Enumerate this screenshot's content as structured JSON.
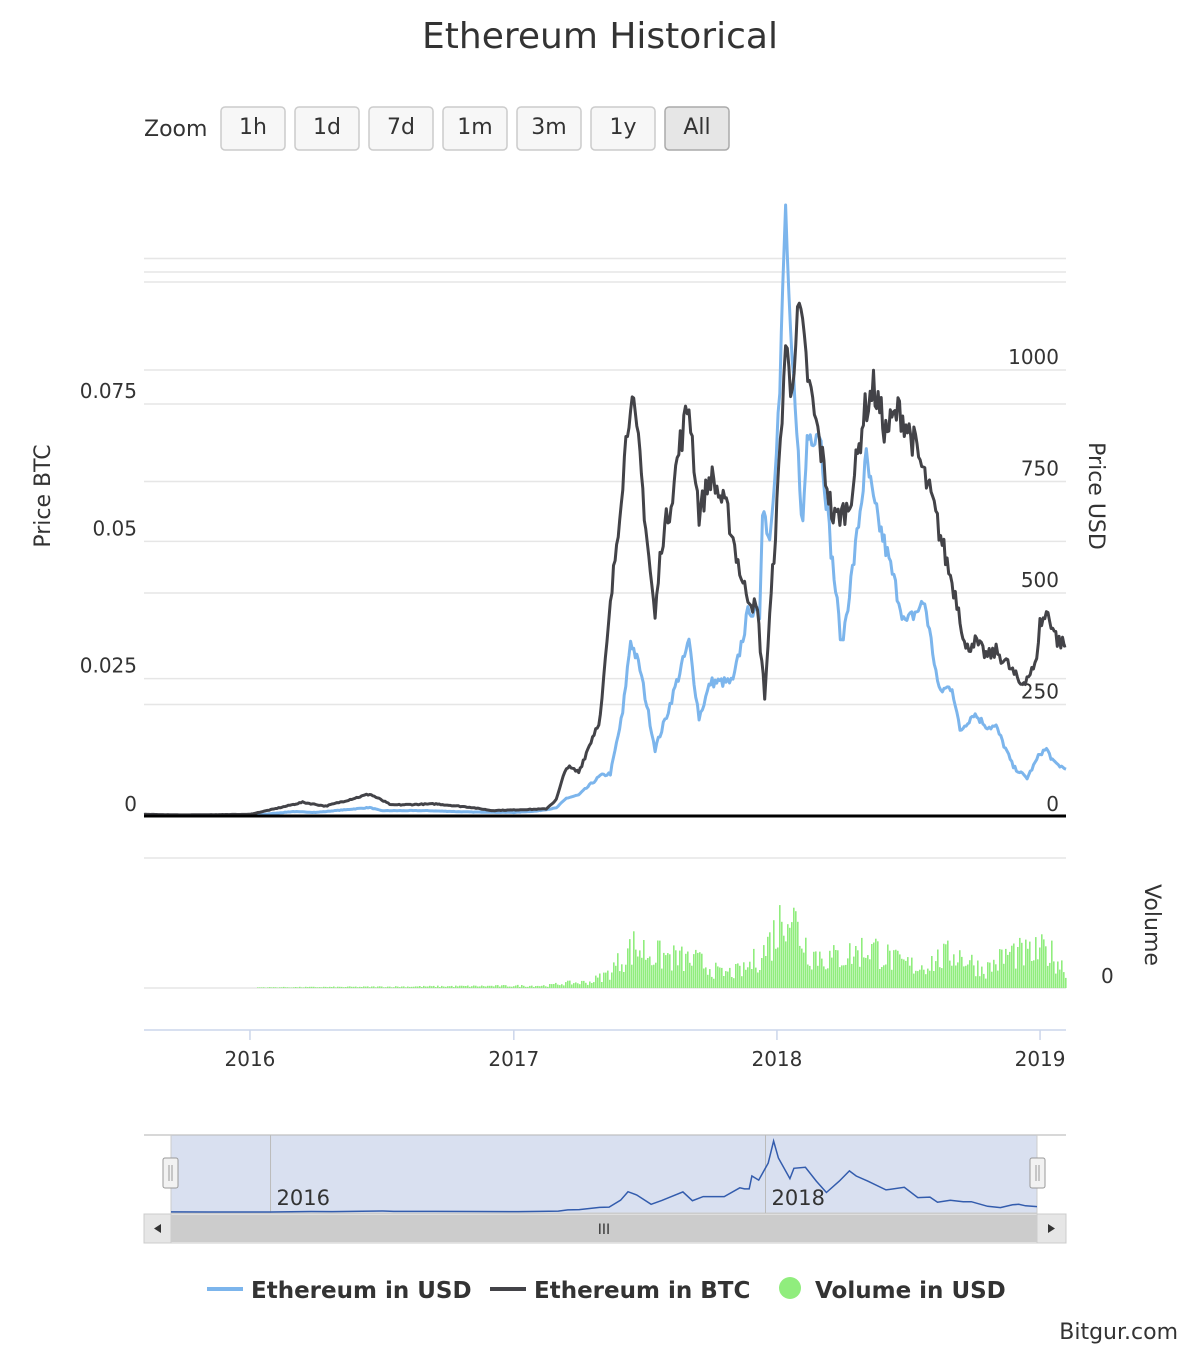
{
  "chart_data": {
    "type": "line",
    "title": "Ethereum Historical",
    "zoom": {
      "label": "Zoom",
      "buttons": [
        "1h",
        "1d",
        "7d",
        "1m",
        "3m",
        "1y",
        "All"
      ],
      "selected": "All"
    },
    "x_axis": {
      "range": [
        "2015-08-07",
        "2019-02-06"
      ],
      "ticks": [
        {
          "date": "2016-01-01",
          "label": "2016"
        },
        {
          "date": "2017-01-01",
          "label": "2017"
        },
        {
          "date": "2018-01-01",
          "label": "2018"
        },
        {
          "date": "2019-01-01",
          "label": "2019"
        }
      ]
    },
    "y_axis_left": {
      "title": "Price BTC",
      "range": [
        0,
        0.0925
      ],
      "ticks": [
        0,
        0.025,
        0.05,
        0.075
      ],
      "tick_labels": [
        "0",
        "0.025",
        "0.05",
        "0.075"
      ]
    },
    "y_axis_right": {
      "title": "Price USD",
      "range": [
        0,
        1250
      ],
      "ticks": [
        0,
        250,
        500,
        750,
        1000
      ],
      "tick_labels": [
        "0",
        "250",
        "500",
        "750",
        "1000"
      ]
    },
    "volume_axis": {
      "title": "Volume",
      "ticks": [
        0
      ],
      "tick_labels": [
        "0"
      ]
    },
    "grid": true,
    "legend_position": "bottom",
    "series": [
      {
        "name": "Ethereum in USD",
        "axis": "right",
        "color": "#7cb5ec",
        "points": [
          [
            "2015-08-07",
            2.8
          ],
          [
            "2015-10-01",
            0.7
          ],
          [
            "2016-01-01",
            0.9
          ],
          [
            "2016-03-01",
            10
          ],
          [
            "2016-04-01",
            8
          ],
          [
            "2016-06-15",
            19
          ],
          [
            "2016-07-01",
            12
          ],
          [
            "2016-09-01",
            12
          ],
          [
            "2016-11-01",
            9
          ],
          [
            "2017-01-01",
            8
          ],
          [
            "2017-02-01",
            11
          ],
          [
            "2017-03-01",
            18
          ],
          [
            "2017-03-15",
            40
          ],
          [
            "2017-04-01",
            47
          ],
          [
            "2017-05-01",
            90
          ],
          [
            "2017-05-15",
            95
          ],
          [
            "2017-06-01",
            230
          ],
          [
            "2017-06-12",
            395
          ],
          [
            "2017-06-25",
            330
          ],
          [
            "2017-07-16",
            150
          ],
          [
            "2017-08-01",
            225
          ],
          [
            "2017-08-15",
            300
          ],
          [
            "2017-09-01",
            390
          ],
          [
            "2017-09-15",
            220
          ],
          [
            "2017-10-01",
            300
          ],
          [
            "2017-10-20",
            300
          ],
          [
            "2017-11-01",
            300
          ],
          [
            "2017-11-24",
            470
          ],
          [
            "2017-12-01",
            450
          ],
          [
            "2017-12-08",
            450
          ],
          [
            "2017-12-12",
            700
          ],
          [
            "2017-12-22",
            620
          ],
          [
            "2018-01-05",
            950
          ],
          [
            "2018-01-13",
            1380
          ],
          [
            "2018-01-20",
            1050
          ],
          [
            "2018-02-06",
            650
          ],
          [
            "2018-02-12",
            850
          ],
          [
            "2018-03-01",
            870
          ],
          [
            "2018-03-17",
            600
          ],
          [
            "2018-04-01",
            380
          ],
          [
            "2018-04-20",
            600
          ],
          [
            "2018-05-05",
            800
          ],
          [
            "2018-05-15",
            700
          ],
          [
            "2018-06-01",
            600
          ],
          [
            "2018-06-28",
            430
          ],
          [
            "2018-07-25",
            480
          ],
          [
            "2018-08-14",
            280
          ],
          [
            "2018-09-01",
            290
          ],
          [
            "2018-09-12",
            190
          ],
          [
            "2018-10-01",
            230
          ],
          [
            "2018-10-20",
            200
          ],
          [
            "2018-11-01",
            200
          ],
          [
            "2018-11-25",
            110
          ],
          [
            "2018-12-14",
            85
          ],
          [
            "2019-01-01",
            140
          ],
          [
            "2019-01-10",
            150
          ],
          [
            "2019-01-20",
            120
          ],
          [
            "2019-02-06",
            105
          ]
        ]
      },
      {
        "name": "Ethereum in BTC",
        "axis": "left",
        "color": "#434348",
        "points": [
          [
            "2015-08-07",
            0.0003
          ],
          [
            "2015-10-01",
            0.0002
          ],
          [
            "2016-01-01",
            0.0003
          ],
          [
            "2016-02-01",
            0.0012
          ],
          [
            "2016-03-14",
            0.0025
          ],
          [
            "2016-04-15",
            0.0018
          ],
          [
            "2016-06-15",
            0.004
          ],
          [
            "2016-07-15",
            0.002
          ],
          [
            "2016-09-15",
            0.0022
          ],
          [
            "2016-11-01",
            0.0016
          ],
          [
            "2016-12-01",
            0.001
          ],
          [
            "2017-01-01",
            0.0011
          ],
          [
            "2017-02-15",
            0.0013
          ],
          [
            "2017-03-01",
            0.003
          ],
          [
            "2017-03-15",
            0.009
          ],
          [
            "2017-04-01",
            0.008
          ],
          [
            "2017-05-01",
            0.018
          ],
          [
            "2017-05-15",
            0.038
          ],
          [
            "2017-06-12",
            0.077
          ],
          [
            "2017-06-25",
            0.065
          ],
          [
            "2017-07-05",
            0.05
          ],
          [
            "2017-07-16",
            0.036
          ],
          [
            "2017-07-25",
            0.05
          ],
          [
            "2017-08-05",
            0.056
          ],
          [
            "2017-08-20",
            0.068
          ],
          [
            "2017-09-01",
            0.075
          ],
          [
            "2017-09-15",
            0.055
          ],
          [
            "2017-10-01",
            0.062
          ],
          [
            "2017-10-25",
            0.055
          ],
          [
            "2017-11-15",
            0.042
          ],
          [
            "2017-12-05",
            0.037
          ],
          [
            "2017-12-15",
            0.022
          ],
          [
            "2017-12-22",
            0.036
          ],
          [
            "2018-01-01",
            0.056
          ],
          [
            "2018-01-13",
            0.086
          ],
          [
            "2018-01-20",
            0.078
          ],
          [
            "2018-02-01",
            0.092
          ],
          [
            "2018-02-15",
            0.078
          ],
          [
            "2018-03-01",
            0.068
          ],
          [
            "2018-03-20",
            0.054
          ],
          [
            "2018-04-10",
            0.056
          ],
          [
            "2018-04-25",
            0.067
          ],
          [
            "2018-05-01",
            0.073
          ],
          [
            "2018-05-15",
            0.078
          ],
          [
            "2018-06-01",
            0.07
          ],
          [
            "2018-06-20",
            0.074
          ],
          [
            "2018-07-10",
            0.068
          ],
          [
            "2018-08-05",
            0.057
          ],
          [
            "2018-08-25",
            0.046
          ],
          [
            "2018-09-10",
            0.038
          ],
          [
            "2018-09-20",
            0.03
          ],
          [
            "2018-10-01",
            0.032
          ],
          [
            "2018-10-20",
            0.029
          ],
          [
            "2018-11-01",
            0.03
          ],
          [
            "2018-11-15",
            0.028
          ],
          [
            "2018-12-05",
            0.024
          ],
          [
            "2018-12-25",
            0.027
          ],
          [
            "2019-01-01",
            0.035
          ],
          [
            "2019-01-12",
            0.037
          ],
          [
            "2019-01-25",
            0.032
          ],
          [
            "2019-02-06",
            0.031
          ]
        ]
      },
      {
        "name": "Volume in USD",
        "axis": "volume",
        "color": "#90ed7d",
        "type": "column",
        "relative_levels": [
          [
            "2015-08-07",
            0.0
          ],
          [
            "2016-06-15",
            0.01
          ],
          [
            "2017-02-15",
            0.02
          ],
          [
            "2017-03-10",
            0.04
          ],
          [
            "2017-04-15",
            0.05
          ],
          [
            "2017-05-10",
            0.12
          ],
          [
            "2017-06-15",
            0.35
          ],
          [
            "2017-07-15",
            0.28
          ],
          [
            "2017-08-15",
            0.25
          ],
          [
            "2017-09-15",
            0.22
          ],
          [
            "2017-10-15",
            0.12
          ],
          [
            "2017-11-15",
            0.15
          ],
          [
            "2017-12-12",
            0.3
          ],
          [
            "2018-01-05",
            0.55
          ],
          [
            "2018-01-13",
            0.78
          ],
          [
            "2018-01-25",
            0.55
          ],
          [
            "2018-02-15",
            0.3
          ],
          [
            "2018-03-15",
            0.25
          ],
          [
            "2018-04-20",
            0.3
          ],
          [
            "2018-05-10",
            0.35
          ],
          [
            "2018-06-15",
            0.22
          ],
          [
            "2018-07-15",
            0.18
          ],
          [
            "2018-08-15",
            0.25
          ],
          [
            "2018-09-05",
            0.3
          ],
          [
            "2018-10-15",
            0.15
          ],
          [
            "2018-11-20",
            0.3
          ],
          [
            "2018-12-15",
            0.28
          ],
          [
            "2019-01-10",
            0.32
          ],
          [
            "2019-02-06",
            0.15
          ]
        ]
      }
    ],
    "navigator": {
      "ticks": [
        {
          "date": "2016-01-01",
          "label": "2016"
        },
        {
          "date": "2018-01-01",
          "label": "2018"
        }
      ],
      "selection": [
        "2015-08-07",
        "2019-02-06"
      ],
      "scrollbar_grip": "III"
    },
    "credit": "Bitgur.com"
  }
}
